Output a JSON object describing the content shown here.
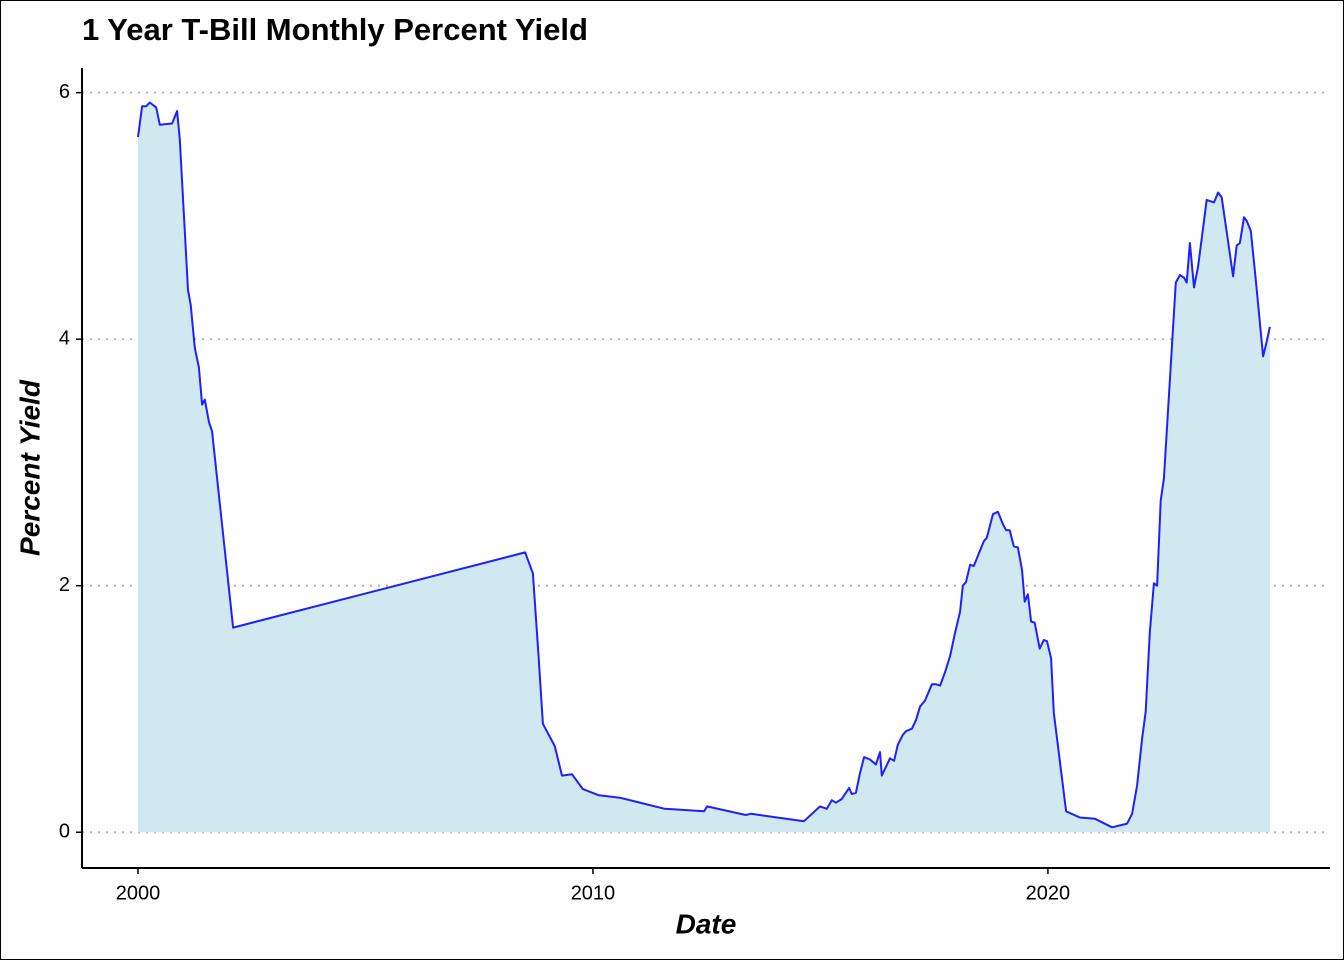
{
  "chart_data": {
    "type": "area",
    "title": "1 Year T-Bill Monthly Percent Yield",
    "x_label": "Date",
    "y_label": "Percent Yield",
    "xlim": [
      1998.77,
      2026.2
    ],
    "xticks": [
      2000,
      2010,
      2020
    ],
    "ylim": [
      -0.29,
      6.2
    ],
    "yticks": [
      0,
      2,
      4,
      6
    ],
    "grid": true,
    "series": [
      {
        "color": "#1f1fff",
        "fill": "#d0e8f0",
        "x": [
          2000.0,
          2000.09,
          2000.18,
          2000.26,
          2000.4,
          2000.48,
          2000.75,
          2000.86,
          2000.92,
          2001.1,
          2001.16,
          2001.25,
          2001.34,
          2001.41,
          2001.47,
          2001.56,
          2001.63,
          2002.09,
          2008.51,
          2008.59,
          2008.68,
          2008.81,
          2008.9,
          2009.16,
          2009.32,
          2009.54,
          2009.78,
          2010.13,
          2010.59,
          2011.58,
          2012.44,
          2012.51,
          2013.36,
          2013.47,
          2014.64,
          2014.99,
          2015.14,
          2015.25,
          2015.34,
          2015.47,
          2015.63,
          2015.69,
          2015.78,
          2015.87,
          2015.96,
          2016.09,
          2016.22,
          2016.31,
          2016.35,
          2016.44,
          2016.53,
          2016.62,
          2016.7,
          2016.81,
          2016.88,
          2017.01,
          2017.1,
          2017.19,
          2017.3,
          2017.45,
          2017.54,
          2017.63,
          2017.74,
          2017.85,
          2017.96,
          2018.07,
          2018.13,
          2018.2,
          2018.29,
          2018.37,
          2018.46,
          2018.59,
          2018.66,
          2018.79,
          2018.9,
          2019.01,
          2019.08,
          2019.16,
          2019.25,
          2019.34,
          2019.43,
          2019.49,
          2019.56,
          2019.63,
          2019.71,
          2019.82,
          2019.91,
          2019.98,
          2020.07,
          2020.13,
          2020.4,
          2020.7,
          2021.03,
          2021.41,
          2021.74,
          2021.85,
          2021.96,
          2022.07,
          2022.15,
          2022.24,
          2022.33,
          2022.4,
          2022.48,
          2022.55,
          2022.81,
          2022.9,
          2022.99,
          2023.05,
          2023.12,
          2023.21,
          2023.3,
          2023.49,
          2023.65,
          2023.74,
          2023.82,
          2023.93,
          2024.07,
          2024.15,
          2024.22,
          2024.31,
          2024.37,
          2024.46,
          2024.57,
          2024.73,
          2024.79,
          2024.88
        ],
        "values": [
          5.64,
          5.89,
          5.89,
          5.92,
          5.88,
          5.74,
          5.75,
          5.85,
          5.62,
          4.4,
          4.28,
          3.93,
          3.77,
          3.47,
          3.51,
          3.33,
          3.25,
          1.66,
          2.27,
          2.19,
          2.1,
          1.4,
          0.88,
          0.7,
          0.46,
          0.47,
          0.35,
          0.3,
          0.28,
          0.19,
          0.17,
          0.21,
          0.14,
          0.15,
          0.09,
          0.21,
          0.19,
          0.26,
          0.24,
          0.27,
          0.36,
          0.31,
          0.32,
          0.48,
          0.61,
          0.59,
          0.55,
          0.65,
          0.46,
          0.53,
          0.6,
          0.58,
          0.71,
          0.79,
          0.82,
          0.84,
          0.91,
          1.02,
          1.07,
          1.2,
          1.2,
          1.19,
          1.3,
          1.43,
          1.62,
          1.79,
          2.0,
          2.03,
          2.17,
          2.16,
          2.24,
          2.36,
          2.39,
          2.58,
          2.6,
          2.5,
          2.45,
          2.45,
          2.32,
          2.31,
          2.13,
          1.87,
          1.93,
          1.71,
          1.7,
          1.49,
          1.56,
          1.55,
          1.41,
          0.97,
          0.17,
          0.12,
          0.11,
          0.04,
          0.07,
          0.15,
          0.38,
          0.76,
          0.98,
          1.62,
          2.02,
          2.0,
          2.69,
          2.87,
          4.46,
          4.52,
          4.5,
          4.46,
          4.78,
          4.42,
          4.59,
          5.13,
          5.11,
          5.19,
          5.15,
          4.87,
          4.51,
          4.76,
          4.78,
          4.99,
          4.96,
          4.88,
          4.48,
          3.86,
          3.95,
          4.1
        ]
      }
    ]
  }
}
